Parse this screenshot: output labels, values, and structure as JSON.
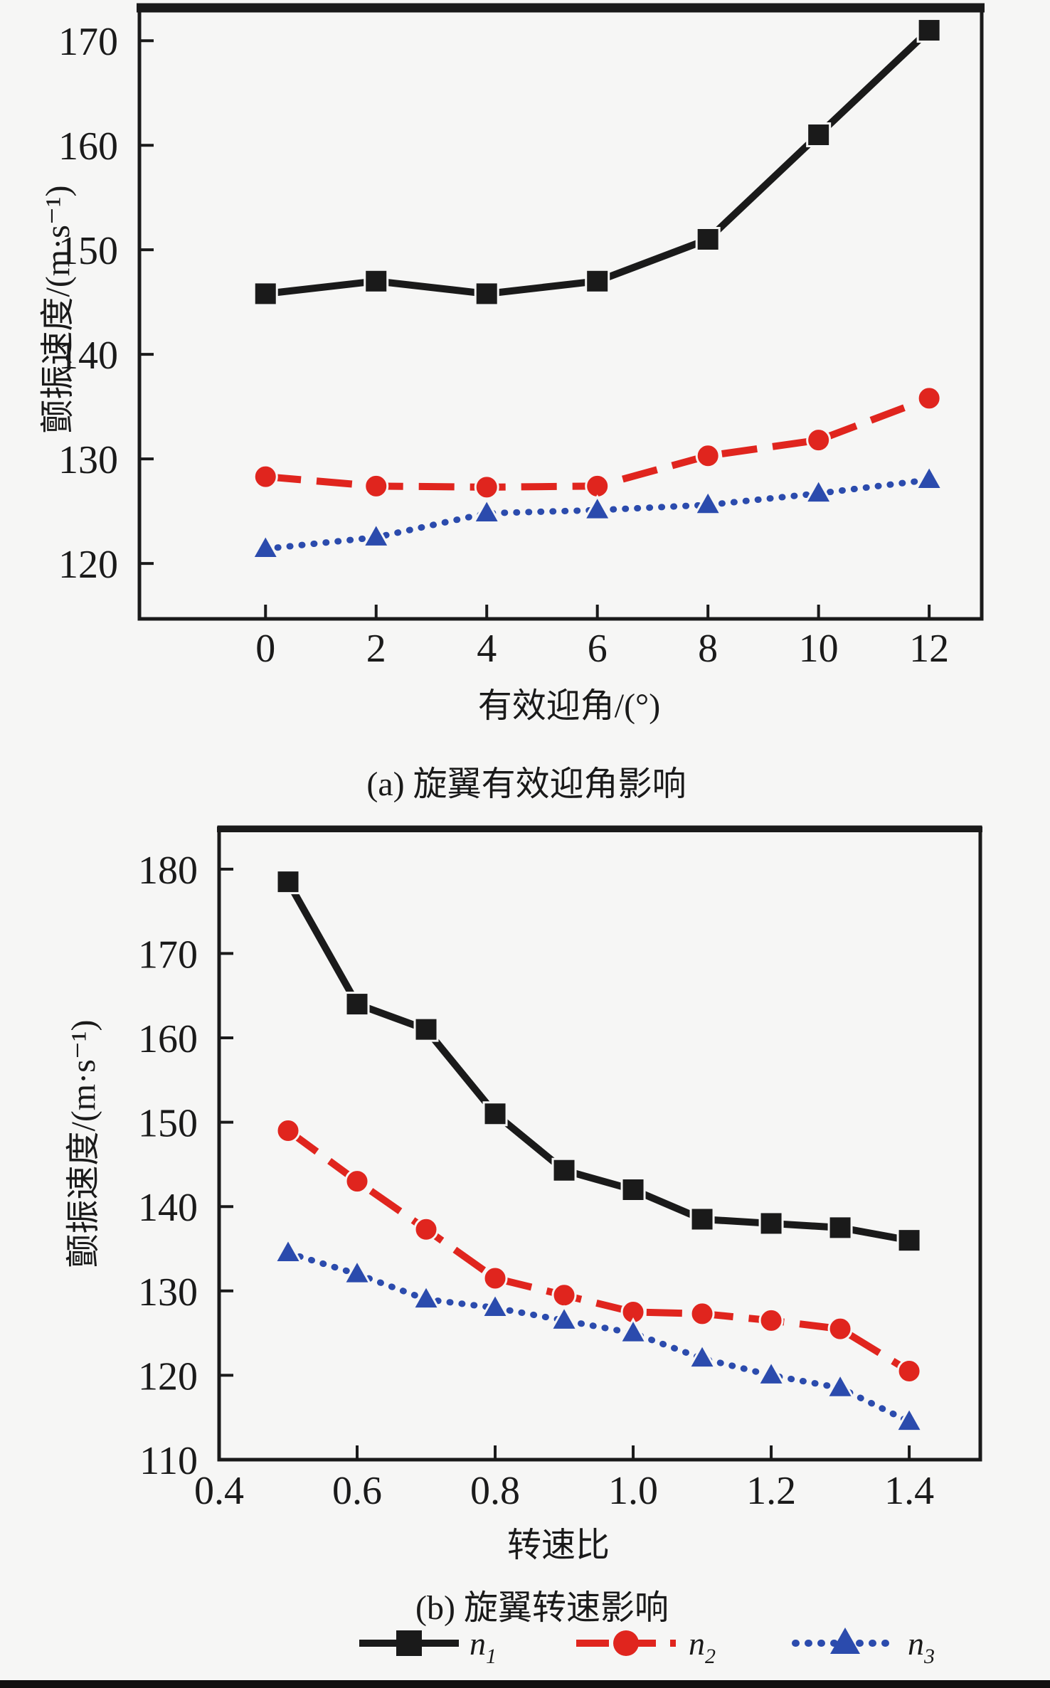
{
  "colors": {
    "n1": "#1a1a1a",
    "n2": "#e0251e",
    "n3": "#2b4bad",
    "frame": "#1a1a1a",
    "background": "#f6f6f5"
  },
  "legend": [
    {
      "base": "n",
      "sub": "1",
      "series": "n1"
    },
    {
      "base": "n",
      "sub": "2",
      "series": "n2"
    },
    {
      "base": "n",
      "sub": "3",
      "series": "n3"
    }
  ],
  "chart_data": [
    {
      "type": "line",
      "panel": "a",
      "title": "(a) 旋翼有效迎角影响",
      "xlabel": "有效迎角/(°)",
      "ylabel": "颤振速度/(m·s⁻¹)",
      "x": [
        0,
        2,
        4,
        6,
        8,
        10,
        12
      ],
      "xtick_values": [
        0,
        2,
        4,
        6,
        8,
        10,
        12
      ],
      "xtick_labels": [
        "0",
        "2",
        "4",
        "6",
        "8",
        "10",
        "12"
      ],
      "ytick_values": [
        120,
        130,
        140,
        150,
        160,
        170
      ],
      "ytick_labels": [
        "120",
        "130",
        "140",
        "150",
        "160",
        "170"
      ],
      "xlim": [
        -2.28,
        12.95
      ],
      "ylim": [
        114.7,
        173.35
      ],
      "grid": false,
      "series": [
        {
          "name": "n1",
          "marker": "square",
          "line": "solid",
          "color": "#1a1a1a",
          "values": [
            145.8,
            147.0,
            145.8,
            147.0,
            151.0,
            161.0,
            171.0
          ]
        },
        {
          "name": "n2",
          "marker": "circle",
          "line": "dashed",
          "color": "#e0251e",
          "values": [
            128.3,
            127.4,
            127.3,
            127.4,
            130.3,
            131.8,
            135.8
          ]
        },
        {
          "name": "n3",
          "marker": "triangle",
          "line": "dotted",
          "color": "#2b4bad",
          "values": [
            121.4,
            122.5,
            124.8,
            125.1,
            125.6,
            126.7,
            128.0
          ]
        }
      ]
    },
    {
      "type": "line",
      "panel": "b",
      "title": "(b) 旋翼转速影响",
      "xlabel": "转速比",
      "ylabel": "颤振速度/(m·s⁻¹)",
      "x": [
        0.5,
        0.6,
        0.7,
        0.8,
        0.9,
        1.0,
        1.1,
        1.2,
        1.3,
        1.4
      ],
      "xtick_values": [
        0.4,
        0.6,
        0.8,
        1.0,
        1.2,
        1.4
      ],
      "xtick_labels": [
        "0.4",
        "0.6",
        "0.8",
        "1.0",
        "1.2",
        "1.4"
      ],
      "ytick_values": [
        110,
        120,
        130,
        140,
        150,
        160,
        170,
        180
      ],
      "ytick_labels": [
        "110",
        "120",
        "130",
        "140",
        "150",
        "160",
        "170",
        "180"
      ],
      "xlim": [
        0.4,
        1.503
      ],
      "ylim": [
        110,
        184.96
      ],
      "grid": false,
      "series": [
        {
          "name": "n1",
          "marker": "square",
          "line": "solid",
          "color": "#1a1a1a",
          "values": [
            178.5,
            164.0,
            161.0,
            151.0,
            144.3,
            142.0,
            138.5,
            138.0,
            137.5,
            136.0
          ]
        },
        {
          "name": "n2",
          "marker": "circle",
          "line": "dashed",
          "color": "#e0251e",
          "values": [
            149.0,
            143.0,
            137.3,
            131.5,
            129.5,
            127.5,
            127.3,
            126.5,
            125.5,
            120.5
          ]
        },
        {
          "name": "n3",
          "marker": "triangle",
          "line": "dotted",
          "color": "#2b4bad",
          "values": [
            134.5,
            132.0,
            129.0,
            128.0,
            126.5,
            125.0,
            122.0,
            120.0,
            118.5,
            114.5
          ]
        }
      ]
    }
  ]
}
